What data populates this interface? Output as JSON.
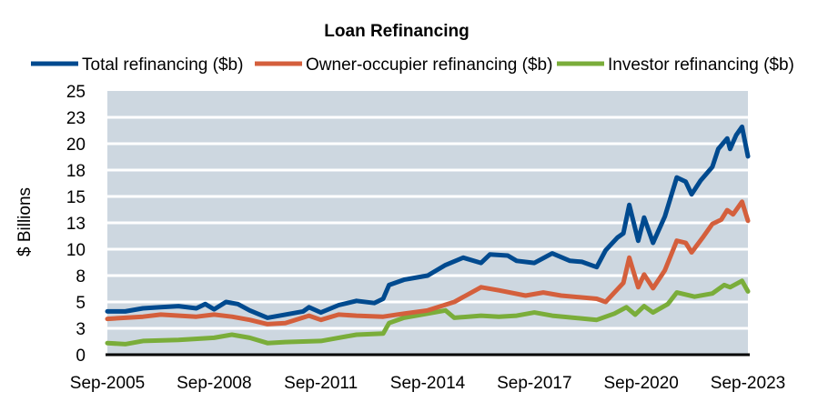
{
  "chart_data": {
    "type": "line",
    "title": "Loan Refinancing",
    "ylabel": "$ Billions",
    "xlabel": "",
    "ylim": [
      0,
      25
    ],
    "y_ticks": [
      "0",
      "3",
      "5",
      "8",
      "10",
      "13",
      "15",
      "18",
      "20",
      "23",
      "25"
    ],
    "y_tick_values": [
      0,
      2.5,
      5,
      7.5,
      10,
      12.5,
      15,
      17.5,
      20,
      22.5,
      25
    ],
    "x_ticks": [
      "Sep-2005",
      "Sep-2008",
      "Sep-2011",
      "Sep-2014",
      "Sep-2017",
      "Sep-2020",
      "Sep-2023"
    ],
    "xlim": [
      "2005-09",
      "2023-09"
    ],
    "grid": "horizontal",
    "legend_position": "top",
    "series": [
      {
        "name": "Total refinancing ($b)",
        "color": "#004a8f",
        "points": [
          [
            "2005-09",
            4.1
          ],
          [
            "2006-03",
            4.1
          ],
          [
            "2006-09",
            4.4
          ],
          [
            "2007-03",
            4.5
          ],
          [
            "2007-09",
            4.6
          ],
          [
            "2008-03",
            4.4
          ],
          [
            "2008-06",
            4.8
          ],
          [
            "2008-09",
            4.3
          ],
          [
            "2009-01",
            5.0
          ],
          [
            "2009-05",
            4.8
          ],
          [
            "2009-09",
            4.2
          ],
          [
            "2010-03",
            3.5
          ],
          [
            "2010-09",
            3.8
          ],
          [
            "2011-03",
            4.1
          ],
          [
            "2011-05",
            4.5
          ],
          [
            "2011-09",
            4.0
          ],
          [
            "2012-03",
            4.7
          ],
          [
            "2012-09",
            5.1
          ],
          [
            "2013-03",
            4.9
          ],
          [
            "2013-06",
            5.3
          ],
          [
            "2013-08",
            6.6
          ],
          [
            "2014-01",
            7.1
          ],
          [
            "2014-09",
            7.5
          ],
          [
            "2015-03",
            8.5
          ],
          [
            "2015-09",
            9.2
          ],
          [
            "2016-03",
            8.7
          ],
          [
            "2016-06",
            9.5
          ],
          [
            "2016-12",
            9.4
          ],
          [
            "2017-03",
            8.9
          ],
          [
            "2017-09",
            8.7
          ],
          [
            "2018-03",
            9.6
          ],
          [
            "2018-09",
            8.9
          ],
          [
            "2019-01",
            8.8
          ],
          [
            "2019-06",
            8.3
          ],
          [
            "2019-09",
            9.9
          ],
          [
            "2020-01",
            11.1
          ],
          [
            "2020-03",
            11.5
          ],
          [
            "2020-05",
            14.2
          ],
          [
            "2020-08",
            10.8
          ],
          [
            "2020-10",
            13.0
          ],
          [
            "2021-01",
            10.6
          ],
          [
            "2021-05",
            13.1
          ],
          [
            "2021-09",
            16.8
          ],
          [
            "2021-12",
            16.4
          ],
          [
            "2022-02",
            15.2
          ],
          [
            "2022-05",
            16.5
          ],
          [
            "2022-09",
            17.8
          ],
          [
            "2022-11",
            19.5
          ],
          [
            "2023-02",
            20.5
          ],
          [
            "2023-03",
            19.5
          ],
          [
            "2023-05",
            20.8
          ],
          [
            "2023-07",
            21.6
          ],
          [
            "2023-09",
            18.8
          ]
        ]
      },
      {
        "name": "Owner-occupier refinancing ($b)",
        "color": "#d45f3c",
        "points": [
          [
            "2005-09",
            3.4
          ],
          [
            "2006-09",
            3.6
          ],
          [
            "2007-03",
            3.8
          ],
          [
            "2008-03",
            3.6
          ],
          [
            "2008-09",
            3.8
          ],
          [
            "2009-03",
            3.6
          ],
          [
            "2009-09",
            3.3
          ],
          [
            "2010-03",
            2.9
          ],
          [
            "2010-09",
            3.0
          ],
          [
            "2011-05",
            3.7
          ],
          [
            "2011-09",
            3.3
          ],
          [
            "2012-03",
            3.8
          ],
          [
            "2012-09",
            3.7
          ],
          [
            "2013-06",
            3.6
          ],
          [
            "2014-01",
            3.9
          ],
          [
            "2014-09",
            4.2
          ],
          [
            "2015-06",
            5.0
          ],
          [
            "2016-03",
            6.4
          ],
          [
            "2016-09",
            6.1
          ],
          [
            "2017-06",
            5.6
          ],
          [
            "2017-12",
            5.9
          ],
          [
            "2018-06",
            5.6
          ],
          [
            "2019-06",
            5.3
          ],
          [
            "2019-09",
            5.0
          ],
          [
            "2019-12",
            5.9
          ],
          [
            "2020-03",
            6.8
          ],
          [
            "2020-05",
            9.2
          ],
          [
            "2020-08",
            6.4
          ],
          [
            "2020-10",
            7.6
          ],
          [
            "2021-01",
            6.3
          ],
          [
            "2021-05",
            8.0
          ],
          [
            "2021-09",
            10.8
          ],
          [
            "2021-12",
            10.6
          ],
          [
            "2022-02",
            9.7
          ],
          [
            "2022-06",
            11.2
          ],
          [
            "2022-09",
            12.4
          ],
          [
            "2022-12",
            12.8
          ],
          [
            "2023-02",
            13.7
          ],
          [
            "2023-04",
            13.3
          ],
          [
            "2023-07",
            14.5
          ],
          [
            "2023-09",
            12.7
          ]
        ]
      },
      {
        "name": "Investor refinancing ($b)",
        "color": "#7aad3a",
        "points": [
          [
            "2005-09",
            1.1
          ],
          [
            "2006-03",
            1.0
          ],
          [
            "2006-09",
            1.3
          ],
          [
            "2007-09",
            1.4
          ],
          [
            "2008-09",
            1.6
          ],
          [
            "2009-03",
            1.9
          ],
          [
            "2009-09",
            1.6
          ],
          [
            "2010-03",
            1.1
          ],
          [
            "2010-09",
            1.2
          ],
          [
            "2011-09",
            1.3
          ],
          [
            "2012-03",
            1.6
          ],
          [
            "2012-09",
            1.9
          ],
          [
            "2013-06",
            2.0
          ],
          [
            "2013-08",
            3.0
          ],
          [
            "2014-01",
            3.5
          ],
          [
            "2014-09",
            3.9
          ],
          [
            "2015-03",
            4.2
          ],
          [
            "2015-06",
            3.5
          ],
          [
            "2016-03",
            3.7
          ],
          [
            "2016-09",
            3.6
          ],
          [
            "2017-03",
            3.7
          ],
          [
            "2017-09",
            4.0
          ],
          [
            "2018-03",
            3.7
          ],
          [
            "2019-06",
            3.3
          ],
          [
            "2019-12",
            3.9
          ],
          [
            "2020-04",
            4.5
          ],
          [
            "2020-07",
            3.8
          ],
          [
            "2020-10",
            4.6
          ],
          [
            "2021-01",
            4.0
          ],
          [
            "2021-06",
            4.8
          ],
          [
            "2021-09",
            5.9
          ],
          [
            "2022-03",
            5.5
          ],
          [
            "2022-09",
            5.8
          ],
          [
            "2023-01",
            6.6
          ],
          [
            "2023-03",
            6.4
          ],
          [
            "2023-07",
            7.0
          ],
          [
            "2023-09",
            6.0
          ]
        ]
      }
    ],
    "plot_background": "#cdd7e0"
  }
}
